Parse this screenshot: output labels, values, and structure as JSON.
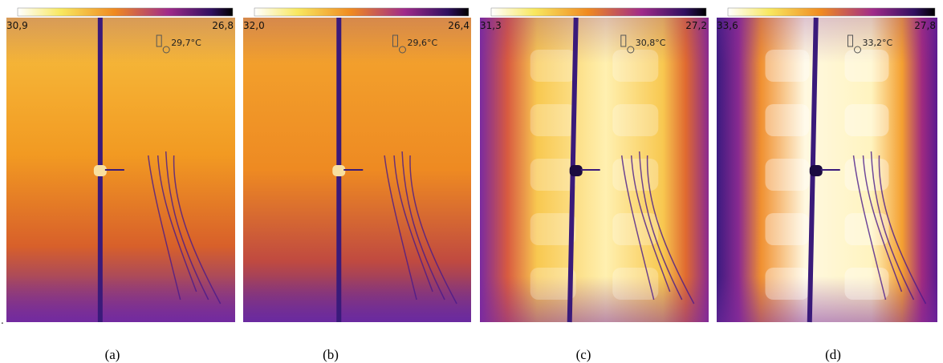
{
  "lead": ".",
  "panels": [
    {
      "scale_max": "30,9",
      "scale_min": "26,8",
      "spot": "29,7°C",
      "caption": "(a)"
    },
    {
      "scale_max": "32,0",
      "scale_min": "26,4",
      "spot": "29,6°C",
      "caption": "(b)"
    },
    {
      "scale_max": "31,3",
      "scale_min": "27,2",
      "spot": "30,8°C",
      "caption": "(c)"
    },
    {
      "scale_max": "33,6",
      "scale_min": "27,8",
      "spot": "33,2°C",
      "caption": "(d)"
    }
  ]
}
